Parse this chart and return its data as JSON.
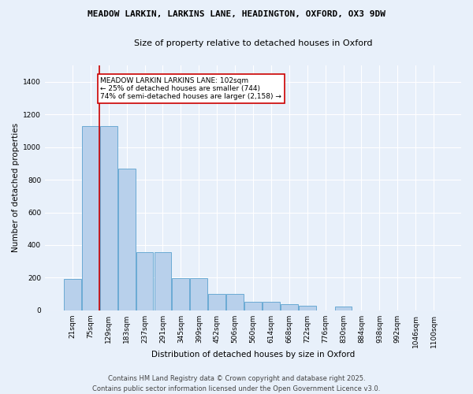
{
  "title_line1": "MEADOW LARKIN, LARKINS LANE, HEADINGTON, OXFORD, OX3 9DW",
  "title_line2": "Size of property relative to detached houses in Oxford",
  "xlabel": "Distribution of detached houses by size in Oxford",
  "ylabel": "Number of detached properties",
  "bar_color": "#b8d0eb",
  "bar_edge_color": "#6aaad4",
  "bg_color": "#e8f0fa",
  "grid_color": "#ffffff",
  "fig_bg_color": "#e8f0fa",
  "categories": [
    "21sqm",
    "75sqm",
    "129sqm",
    "183sqm",
    "237sqm",
    "291sqm",
    "345sqm",
    "399sqm",
    "452sqm",
    "506sqm",
    "560sqm",
    "614sqm",
    "668sqm",
    "722sqm",
    "776sqm",
    "830sqm",
    "884sqm",
    "938sqm",
    "992sqm",
    "1046sqm",
    "1100sqm"
  ],
  "values": [
    190,
    1130,
    1130,
    870,
    355,
    355,
    195,
    195,
    100,
    100,
    50,
    50,
    40,
    30,
    0,
    25,
    0,
    0,
    0,
    0,
    0
  ],
  "ylim": [
    0,
    1500
  ],
  "yticks": [
    0,
    200,
    400,
    600,
    800,
    1000,
    1200,
    1400
  ],
  "vline_x": 1.5,
  "annotation_text": "MEADOW LARKIN LARKINS LANE: 102sqm\n← 25% of detached houses are smaller (744)\n74% of semi-detached houses are larger (2,158) →",
  "annotation_box_color": "#ffffff",
  "annotation_border_color": "#cc0000",
  "vline_color": "#cc0000",
  "footer_text": "Contains HM Land Registry data © Crown copyright and database right 2025.\nContains public sector information licensed under the Open Government Licence v3.0.",
  "title_fontsize": 8.0,
  "subtitle_fontsize": 8.0,
  "axis_label_fontsize": 7.5,
  "tick_fontsize": 6.5,
  "annotation_fontsize": 6.5,
  "footer_fontsize": 6.0
}
